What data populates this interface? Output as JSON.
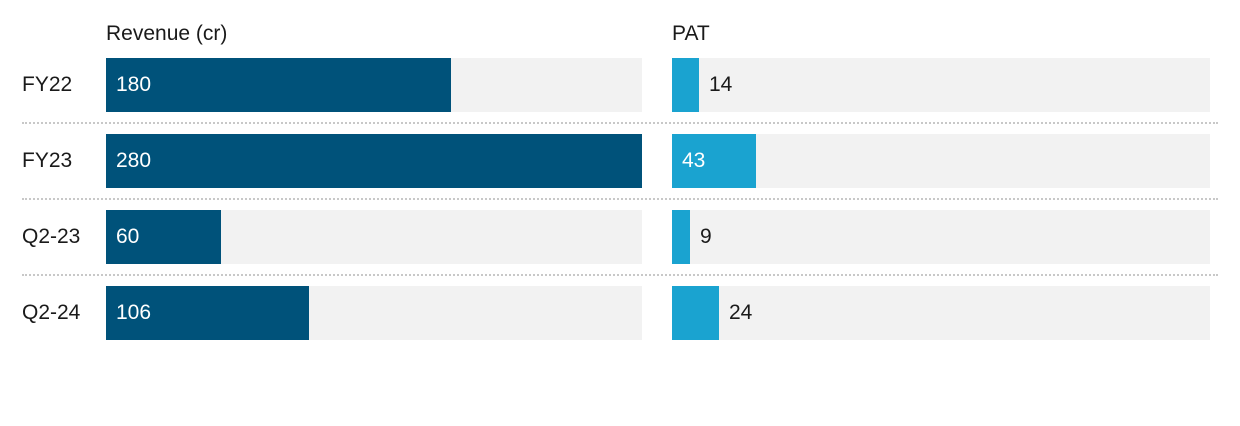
{
  "chart_data": {
    "type": "bar",
    "categories": [
      "FY22",
      "FY23",
      "Q2-23",
      "Q2-24"
    ],
    "series": [
      {
        "name": "Revenue (cr)",
        "values": [
          180,
          280,
          60,
          106
        ],
        "color": "#00527a",
        "max": 280
      },
      {
        "name": "PAT",
        "values": [
          14,
          43,
          9,
          24
        ],
        "color": "#1aa3d0",
        "max": 275
      }
    ],
    "track_color": "#f2f2f2",
    "value_label_inside_color": "#ffffff",
    "value_label_outside_color": "#1a1a1a",
    "grid": false
  }
}
